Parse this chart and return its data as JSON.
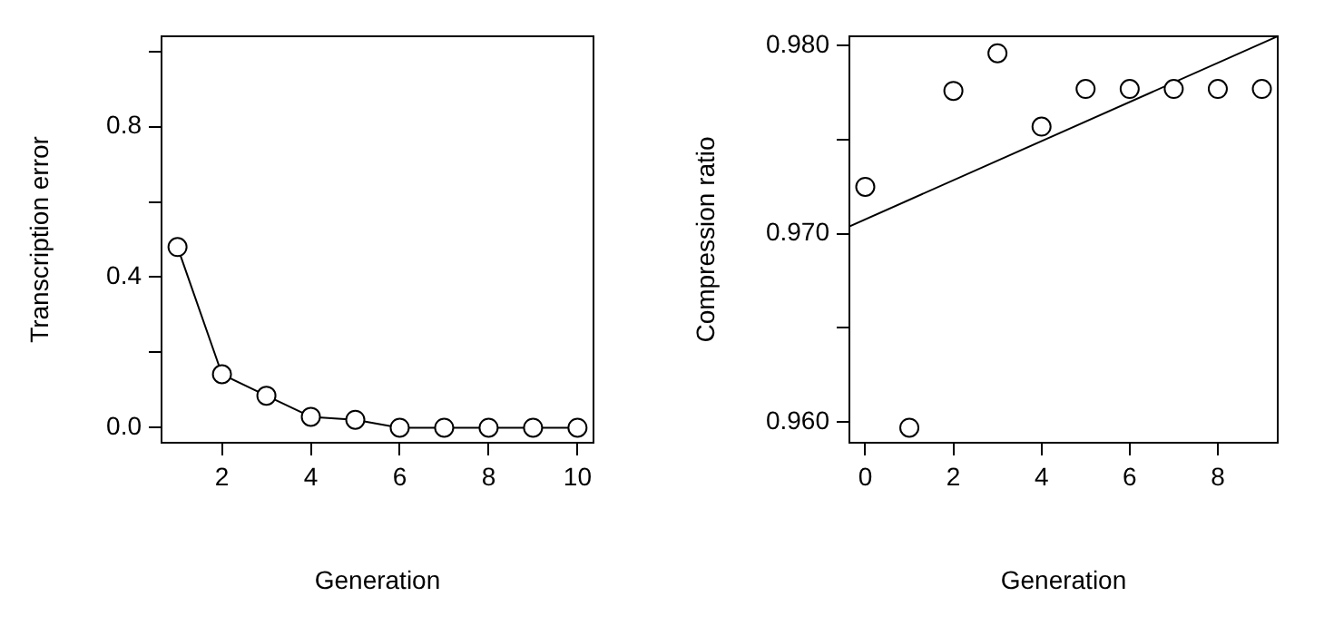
{
  "chart_data": [
    {
      "type": "line",
      "xlabel": "Generation",
      "ylabel": "Transcription error",
      "x": [
        1,
        2,
        3,
        4,
        5,
        6,
        7,
        8,
        9,
        10
      ],
      "series": [
        {
          "color": "#000000",
          "values": [
            0.48,
            0.142,
            0.085,
            0.029,
            0.021,
            0,
            0,
            0,
            0,
            0
          ]
        }
      ],
      "xlim": [
        0.64,
        10.36
      ],
      "ylim": [
        -0.04,
        1.04
      ],
      "xticks": [
        2,
        4,
        6,
        8,
        10
      ],
      "yticks": [
        {
          "value": 0,
          "label": "0.0"
        },
        {
          "value": 0.2,
          "label": null
        },
        0.4,
        {
          "value": 0.6,
          "label": null
        },
        0.8,
        {
          "value": 1,
          "label": null
        }
      ],
      "grid": false,
      "legend": false,
      "marker": "circle",
      "line_style": "solid"
    },
    {
      "type": "scatter",
      "xlabel": "Generation",
      "ylabel": "Compression ratio",
      "x": [
        0,
        1,
        2,
        3,
        4,
        5,
        6,
        7,
        8,
        9
      ],
      "series": [
        {
          "color": "#000000",
          "marker": "circle",
          "values": [
            0.9725,
            0.9597,
            0.9776,
            0.9796,
            0.9757,
            0.9777,
            0.9777,
            0.9777,
            0.9777,
            0.9777
          ]
        },
        {
          "type": "line",
          "color": "#000000",
          "marker": "none",
          "x": [
            -0.36,
            9.36
          ],
          "values": [
            0.9704,
            0.9805
          ]
        }
      ],
      "xlim": [
        -0.36,
        9.36
      ],
      "ylim": [
        0.9589,
        0.9805
      ],
      "xticks": [
        0,
        2,
        4,
        6,
        8
      ],
      "yticks": [
        {
          "value": 0.96,
          "label": "0.960"
        },
        {
          "value": 0.965,
          "label": null
        },
        {
          "value": 0.97,
          "label": "0.970"
        },
        {
          "value": 0.975,
          "label": null
        },
        {
          "value": 0.98,
          "label": "0.980"
        }
      ],
      "grid": false,
      "legend": false
    }
  ]
}
